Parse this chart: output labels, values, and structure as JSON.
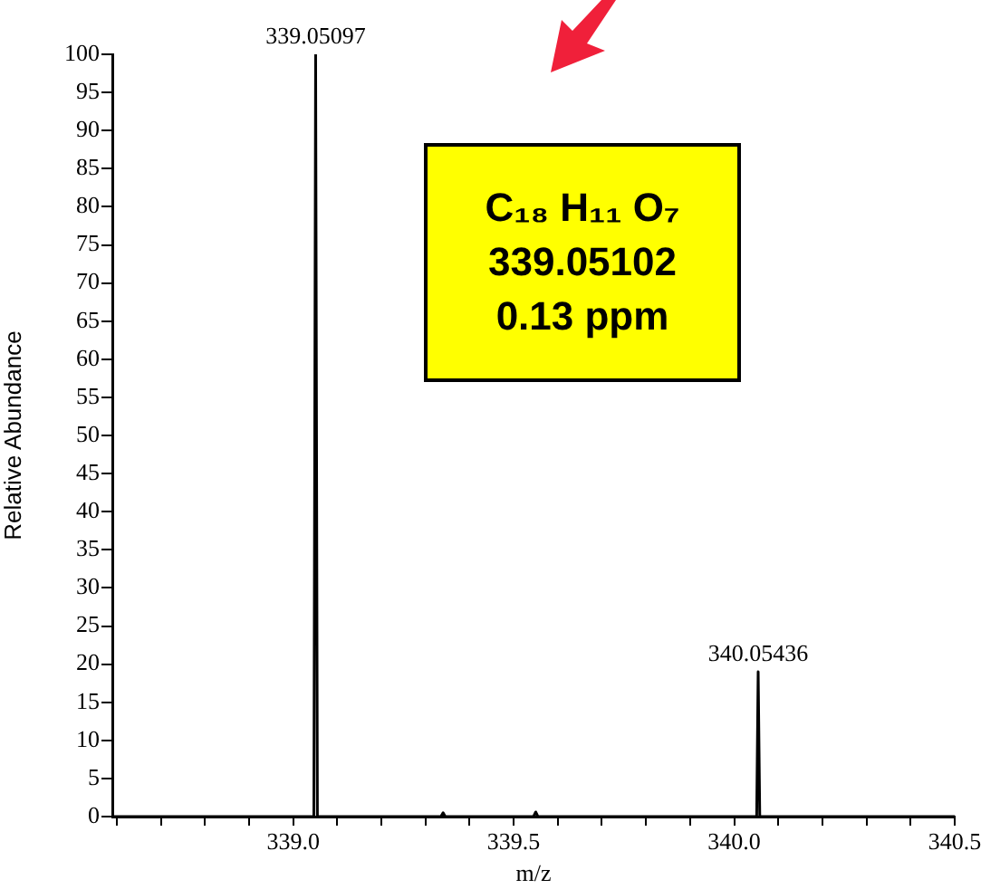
{
  "chart_data": {
    "type": "line",
    "xlabel": "m/z",
    "ylabel": "Relative Abundance",
    "marker": "none",
    "x": [
      338.59,
      339.047,
      339.05097,
      339.055,
      339.335,
      339.34,
      339.345,
      339.545,
      339.55,
      339.555,
      340.051,
      340.05436,
      340.058,
      340.5
    ],
    "values": [
      0,
      0,
      100,
      0,
      0,
      0.5,
      0,
      0,
      0.6,
      0,
      0,
      19,
      0,
      0
    ],
    "color": "#000000",
    "xlim": [
      338.59,
      340.5
    ],
    "xticks": [
      {
        "value": 338.6,
        "label": null
      },
      {
        "value": 338.7,
        "label": null
      },
      {
        "value": 338.8,
        "label": null
      },
      {
        "value": 338.9,
        "label": null
      },
      {
        "value": 339,
        "label": "339.0"
      },
      {
        "value": 339.1,
        "label": null
      },
      {
        "value": 339.2,
        "label": null
      },
      {
        "value": 339.3,
        "label": null
      },
      {
        "value": 339.4,
        "label": null
      },
      {
        "value": 339.5,
        "label": "339.5"
      },
      {
        "value": 339.6,
        "label": null
      },
      {
        "value": 339.7,
        "label": null
      },
      {
        "value": 339.8,
        "label": null
      },
      {
        "value": 339.9,
        "label": null
      },
      {
        "value": 340,
        "label": "340.0"
      },
      {
        "value": 340.1,
        "label": null
      },
      {
        "value": 340.2,
        "label": null
      },
      {
        "value": 340.3,
        "label": null
      },
      {
        "value": 340.4,
        "label": null
      },
      {
        "value": 340.5,
        "label": "340.5"
      }
    ],
    "ylim": [
      0,
      100
    ],
    "yticks": [
      0,
      5,
      10,
      15,
      20,
      25,
      30,
      35,
      40,
      45,
      50,
      55,
      60,
      65,
      70,
      75,
      80,
      85,
      90,
      95,
      100
    ],
    "annotations": [
      {
        "text": "339.05097",
        "x": 339.05097,
        "y": 100
      },
      {
        "text": "340.05436",
        "x": 340.05436,
        "y": 19
      },
      "C₁₈ H₁₁ O₇",
      "339.05102",
      "0.13 ppm"
    ]
  }
}
